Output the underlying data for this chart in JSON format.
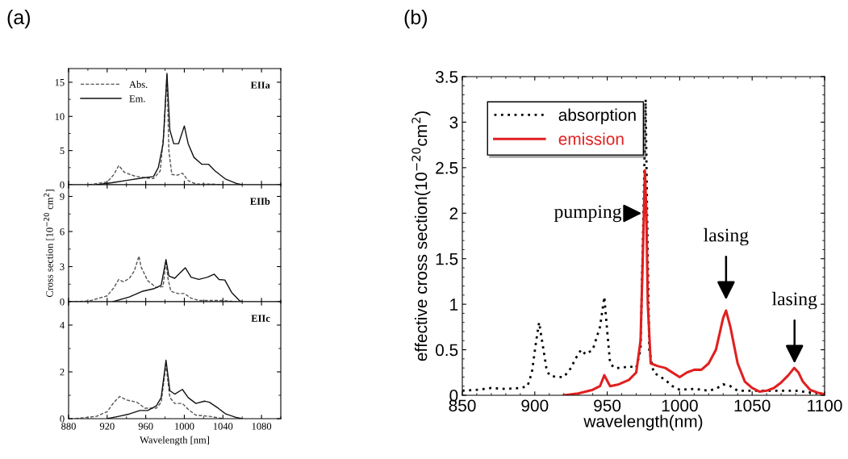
{
  "chart_data": [
    {
      "type": "line",
      "title": "(a)",
      "xlim": [
        880,
        1100
      ],
      "xticks": [
        {
          "value": 880,
          "label": null
        },
        {
          "value": 920,
          "label": null
        },
        {
          "value": 960,
          "label": null
        },
        {
          "value": 1000,
          "label": null
        },
        {
          "value": 1040,
          "label": null
        },
        {
          "value": 1080,
          "label": null
        }
      ],
      "ylim": [
        0,
        17
      ],
      "yticks": [
        0,
        5,
        10,
        15
      ],
      "tick_labels": "y",
      "legend": "top left",
      "grid": false,
      "annotations": [
        "EIIa"
      ],
      "series": [
        {
          "name": "Abs.",
          "color": "#555555",
          "line_style": "dashed",
          "x": [
            901,
            920,
            927,
            932,
            938,
            948,
            959,
            968,
            975,
            979,
            982,
            984,
            987,
            993,
            998,
            1004,
            1012,
            1026,
            1040
          ],
          "values": [
            0,
            0.4,
            1.5,
            2.8,
            1.8,
            1.3,
            1.0,
            0.9,
            2,
            8,
            16,
            5,
            1.5,
            1.4,
            1.7,
            0.6,
            0.1,
            0.1,
            0
          ]
        },
        {
          "name": "Em.",
          "color": "#111111",
          "line_style": "solid",
          "x": [
            909,
            925,
            943,
            957,
            968,
            973,
            978,
            982,
            985,
            989,
            994,
            1000,
            1004,
            1010,
            1018,
            1025,
            1032,
            1043,
            1054,
            1060
          ],
          "values": [
            0,
            0.3,
            0.7,
            1.0,
            1.2,
            2.5,
            6,
            16.3,
            8,
            6,
            6,
            8.6,
            6,
            4,
            3,
            3.0,
            2,
            0.8,
            0.2,
            0
          ]
        }
      ]
    },
    {
      "type": "line",
      "xlim": [
        880,
        1100
      ],
      "xticks": [
        {
          "value": 880,
          "label": null
        },
        {
          "value": 920,
          "label": null
        },
        {
          "value": 960,
          "label": null
        },
        {
          "value": 1000,
          "label": null
        },
        {
          "value": 1040,
          "label": null
        },
        {
          "value": 1080,
          "label": null
        }
      ],
      "ylim": [
        0,
        10
      ],
      "yticks": [
        0,
        3,
        6,
        9
      ],
      "tick_labels": "y",
      "grid": false,
      "ylabel": "Cross section [10$^{−20}$ cm$^{2}$]",
      "annotations": [
        "EIIb"
      ],
      "series": [
        {
          "color": "#555555",
          "line_style": "dashed",
          "x": [
            881,
            901,
            920,
            927,
            932,
            937,
            943,
            948,
            953,
            955,
            962,
            971,
            978,
            981,
            983,
            986,
            993,
            1000,
            1007,
            1015,
            1040,
            1054
          ],
          "values": [
            0,
            0.05,
            0.5,
            1.2,
            1.9,
            1.7,
            2.0,
            2.6,
            3.9,
            3.0,
            1.8,
            1.2,
            1.3,
            3.5,
            2.0,
            0.9,
            0.7,
            0.7,
            0.3,
            0.1,
            0.1,
            0
          ]
        },
        {
          "color": "#111111",
          "line_style": "solid",
          "x": [
            926,
            943,
            957,
            968,
            976,
            981,
            984,
            990,
            996,
            1001,
            1007,
            1015,
            1024,
            1031,
            1036,
            1042,
            1049,
            1057,
            1060
          ],
          "values": [
            0,
            0.4,
            0.9,
            1.1,
            1.4,
            3.6,
            2.2,
            2.0,
            2.5,
            2.9,
            2.1,
            1.9,
            2.1,
            2.35,
            1.9,
            1.85,
            0.8,
            0.1,
            0
          ]
        }
      ]
    },
    {
      "type": "line",
      "xlim": [
        880,
        1100
      ],
      "xticks": [
        880,
        920,
        960,
        1000,
        1040,
        1080
      ],
      "ylim": [
        0,
        5
      ],
      "yticks": [
        0,
        2,
        4
      ],
      "grid": false,
      "xlabel": "Wavelength [nm]",
      "annotations": [
        "EIIc"
      ],
      "series": [
        {
          "color": "#555555",
          "line_style": "dashed",
          "x": [
            887,
            909,
            920,
            927,
            933,
            940,
            951,
            959,
            971,
            976,
            981,
            985,
            990,
            998,
            1004,
            1012,
            1026,
            1040
          ],
          "values": [
            0,
            0.1,
            0.3,
            0.7,
            0.95,
            0.8,
            0.7,
            0.45,
            0.45,
            0.7,
            2.3,
            0.9,
            0.65,
            0.65,
            0.4,
            0.15,
            0.1,
            0
          ]
        },
        {
          "color": "#111111",
          "line_style": "solid",
          "x": [
            920,
            932,
            943,
            954,
            962,
            971,
            976,
            981,
            985,
            990,
            998,
            1004,
            1012,
            1021,
            1026,
            1035,
            1043,
            1054,
            1060
          ],
          "values": [
            0,
            0.1,
            0.2,
            0.35,
            0.35,
            0.55,
            0.9,
            2.5,
            1.2,
            1.05,
            1.25,
            0.9,
            0.65,
            0.75,
            0.7,
            0.45,
            0.2,
            0.05,
            0
          ]
        }
      ]
    },
    {
      "type": "line",
      "title": "(b)",
      "xlim": [
        850,
        1100
      ],
      "xticks": [
        850,
        900,
        950,
        1000,
        1050,
        1100
      ],
      "ylim": [
        0,
        3.5
      ],
      "yticks": [
        0,
        0.5,
        1,
        1.5,
        2,
        2.5,
        3,
        3.5
      ],
      "grid": false,
      "legend": "top left",
      "xlabel": "wavelength(nm)",
      "ylabel": "effective cross section(10$^{−20}$cm$^{2}$)",
      "annotations": [
        "pumping",
        "lasing",
        "lasing"
      ],
      "series": [
        {
          "name": "absorption",
          "color": "#000000",
          "line_style": "dotted",
          "x": [
            850,
            860,
            870,
            880,
            890,
            895,
            898,
            901,
            903,
            905,
            908,
            910,
            915,
            920,
            925,
            928,
            932,
            935,
            940,
            945,
            948,
            950,
            952,
            955,
            960,
            965,
            970,
            973,
            975,
            976.5,
            977.5,
            979,
            982,
            990,
            995,
            1000,
            1010,
            1020,
            1025,
            1030,
            1035,
            1040,
            1050,
            1060,
            1070,
            1080,
            1090,
            1095
          ],
          "values": [
            0.05,
            0.06,
            0.08,
            0.07,
            0.08,
            0.1,
            0.25,
            0.6,
            0.8,
            0.6,
            0.3,
            0.22,
            0.2,
            0.2,
            0.3,
            0.4,
            0.5,
            0.45,
            0.5,
            0.75,
            1.08,
            0.7,
            0.35,
            0.3,
            0.3,
            0.32,
            0.3,
            0.5,
            2.0,
            3.25,
            2.0,
            0.5,
            0.25,
            0.17,
            0.1,
            0.06,
            0.07,
            0.05,
            0.07,
            0.12,
            0.1,
            0.05,
            0.05,
            0.05,
            0.05,
            0.05,
            0.03,
            0.02
          ]
        },
        {
          "name": "emission",
          "color": "#e02020",
          "line_style": "solid",
          "x": [
            920,
            930,
            940,
            945,
            948,
            952,
            958,
            965,
            970,
            973,
            975,
            976,
            977,
            978,
            980,
            985,
            990,
            1000,
            1005,
            1010,
            1015,
            1020,
            1025,
            1030,
            1032,
            1035,
            1040,
            1045,
            1050,
            1055,
            1060,
            1065,
            1070,
            1075,
            1079,
            1082,
            1085,
            1090,
            1095,
            1100
          ],
          "values": [
            0,
            0.02,
            0.06,
            0.1,
            0.22,
            0.1,
            0.12,
            0.17,
            0.25,
            0.6,
            1.8,
            2.47,
            2.0,
            1.0,
            0.35,
            0.32,
            0.3,
            0.2,
            0.25,
            0.28,
            0.28,
            0.35,
            0.5,
            0.85,
            0.93,
            0.75,
            0.35,
            0.15,
            0.08,
            0.04,
            0.05,
            0.08,
            0.14,
            0.22,
            0.3,
            0.25,
            0.15,
            0.06,
            0.03,
            0.01
          ]
        }
      ]
    }
  ]
}
